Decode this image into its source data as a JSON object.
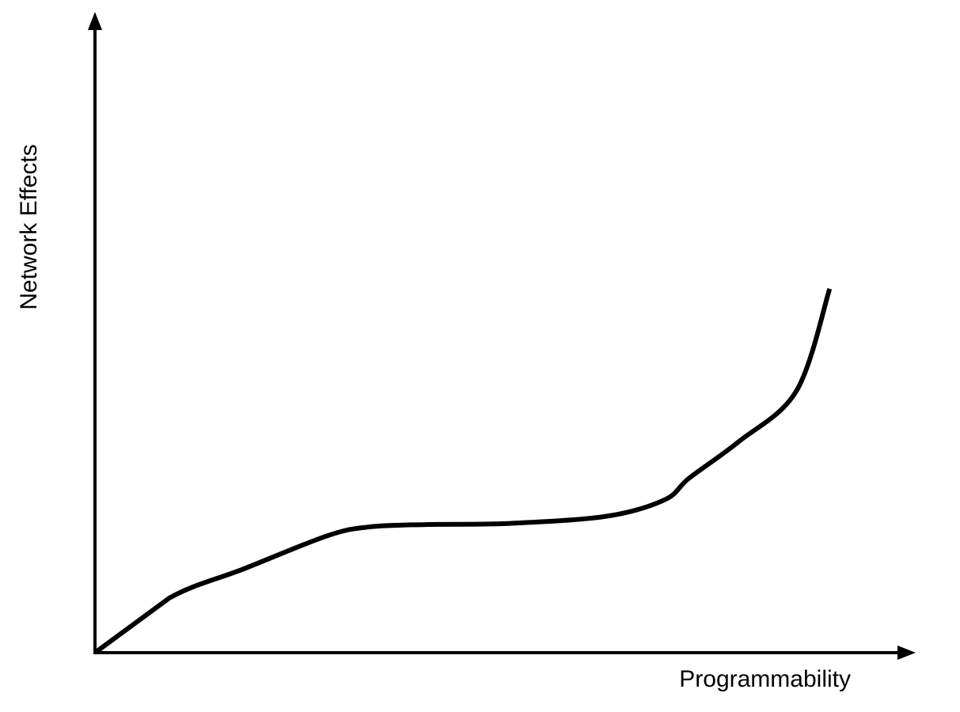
{
  "chart_data": {
    "type": "line",
    "title": "",
    "xlabel": "Programmability",
    "ylabel": "Network Effects",
    "x_ticks": false,
    "y_ticks": false,
    "grid": false,
    "legend": "none",
    "xlim": [
      0,
      100
    ],
    "ylim": [
      0,
      100
    ],
    "series": [
      {
        "x": [
          0,
          9,
          18,
          28,
          33,
          40,
          50,
          62,
          69,
          72,
          78,
          85,
          89
        ],
        "y": [
          0,
          15,
          23,
          32,
          34.5,
          35.2,
          35.5,
          37.5,
          42,
          48,
          58,
          72,
          100
        ]
      }
    ],
    "colors": {
      "line": "#000000",
      "axis": "#000000",
      "background": "#ffffff"
    }
  }
}
